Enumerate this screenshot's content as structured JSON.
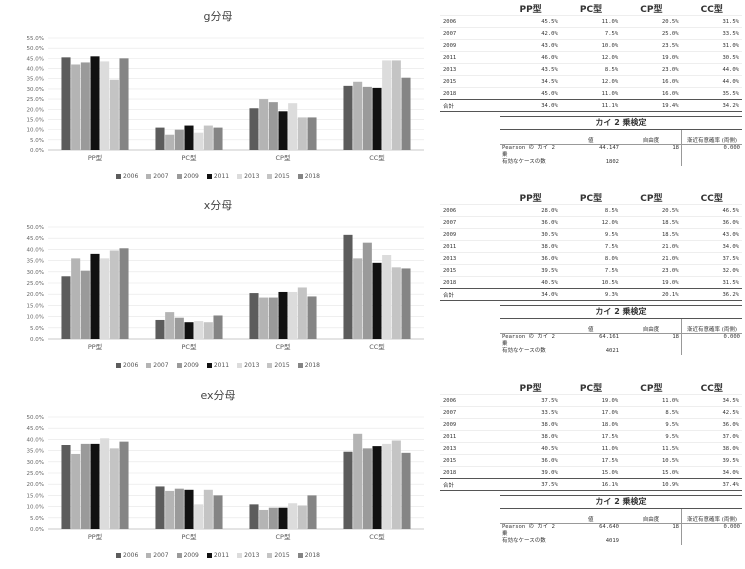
{
  "legend_years": [
    "2006",
    "2007",
    "2009",
    "2011",
    "2013",
    "2015",
    "2018"
  ],
  "series_colors": [
    "#5c5c5c",
    "#b4b4b4",
    "#9a9a9a",
    "#111111",
    "#dcdcdc",
    "#c4c4c4",
    "#858585"
  ],
  "chart_data": [
    {
      "type": "bar",
      "title": "g分母",
      "categories": [
        "PP型",
        "PC型",
        "CP型",
        "CC型"
      ],
      "ylim": [
        0,
        55
      ],
      "yticks": [
        "0.0%",
        "5.0%",
        "10.0%",
        "15.0%",
        "20.0%",
        "25.0%",
        "30.0%",
        "35.0%",
        "40.0%",
        "45.0%",
        "50.0%",
        "55.0%"
      ],
      "grid": true,
      "legend_position": "bottom",
      "series": [
        {
          "name": "2006",
          "values": [
            45.5,
            11.0,
            20.5,
            31.5
          ]
        },
        {
          "name": "2007",
          "values": [
            42.0,
            7.5,
            25.0,
            33.5
          ]
        },
        {
          "name": "2009",
          "values": [
            43.0,
            10.0,
            23.5,
            31.0
          ]
        },
        {
          "name": "2011",
          "values": [
            46.0,
            12.0,
            19.0,
            30.5
          ]
        },
        {
          "name": "2013",
          "values": [
            43.5,
            8.5,
            23.0,
            44.0
          ]
        },
        {
          "name": "2015",
          "values": [
            34.5,
            12.0,
            16.0,
            44.0
          ]
        },
        {
          "name": "2018",
          "values": [
            45.0,
            11.0,
            16.0,
            35.5
          ]
        }
      ]
    },
    {
      "type": "bar",
      "title": "x分母",
      "categories": [
        "PP型",
        "PC型",
        "CP型",
        "CC型"
      ],
      "ylim": [
        0,
        50
      ],
      "yticks": [
        "0.0%",
        "5.0%",
        "10.0%",
        "15.0%",
        "20.0%",
        "25.0%",
        "30.0%",
        "35.0%",
        "40.0%",
        "45.0%",
        "50.0%"
      ],
      "grid": true,
      "legend_position": "bottom",
      "series": [
        {
          "name": "2006",
          "values": [
            28.0,
            8.5,
            20.5,
            46.5
          ]
        },
        {
          "name": "2007",
          "values": [
            36.0,
            12.0,
            18.5,
            36.0
          ]
        },
        {
          "name": "2009",
          "values": [
            30.5,
            9.5,
            18.5,
            43.0
          ]
        },
        {
          "name": "2011",
          "values": [
            38.0,
            7.5,
            21.0,
            34.0
          ]
        },
        {
          "name": "2013",
          "values": [
            36.0,
            8.0,
            21.0,
            37.5
          ]
        },
        {
          "name": "2015",
          "values": [
            39.5,
            7.5,
            23.0,
            32.0
          ]
        },
        {
          "name": "2018",
          "values": [
            40.5,
            10.5,
            19.0,
            31.5
          ]
        }
      ]
    },
    {
      "type": "bar",
      "title": "ex分母",
      "categories": [
        "PP型",
        "PC型",
        "CP型",
        "CC型"
      ],
      "ylim": [
        0,
        50
      ],
      "yticks": [
        "0.0%",
        "5.0%",
        "10.0%",
        "15.0%",
        "20.0%",
        "25.0%",
        "30.0%",
        "35.0%",
        "40.0%",
        "45.0%",
        "50.0%"
      ],
      "grid": true,
      "legend_position": "bottom",
      "series": [
        {
          "name": "2006",
          "values": [
            37.5,
            19.0,
            11.0,
            34.5
          ]
        },
        {
          "name": "2007",
          "values": [
            33.5,
            17.0,
            8.5,
            42.5
          ]
        },
        {
          "name": "2009",
          "values": [
            38.0,
            18.0,
            9.5,
            36.0
          ]
        },
        {
          "name": "2011",
          "values": [
            38.0,
            17.5,
            9.5,
            37.0
          ]
        },
        {
          "name": "2013",
          "values": [
            40.5,
            11.0,
            11.5,
            38.0
          ]
        },
        {
          "name": "2015",
          "values": [
            36.0,
            17.5,
            10.5,
            39.5
          ]
        },
        {
          "name": "2018",
          "values": [
            39.0,
            15.0,
            15.0,
            34.0
          ]
        }
      ]
    }
  ],
  "tables": [
    {
      "headers": [
        "",
        "PP型",
        "PC型",
        "CP型",
        "CC型"
      ],
      "rows": [
        [
          "2006",
          "45.5%",
          "11.0%",
          "20.5%",
          "31.5%"
        ],
        [
          "2007",
          "42.0%",
          "7.5%",
          "25.0%",
          "33.5%"
        ],
        [
          "2009",
          "43.0%",
          "10.0%",
          "23.5%",
          "31.0%"
        ],
        [
          "2011",
          "46.0%",
          "12.0%",
          "19.0%",
          "30.5%"
        ],
        [
          "2013",
          "43.5%",
          "8.5%",
          "23.0%",
          "44.0%"
        ],
        [
          "2015",
          "34.5%",
          "12.0%",
          "16.0%",
          "44.0%"
        ],
        [
          "2018",
          "45.0%",
          "11.0%",
          "16.0%",
          "35.5%"
        ]
      ],
      "total": [
        "合計",
        "34.0%",
        "11.1%",
        "19.4%",
        "34.2%"
      ],
      "chi": {
        "title": "カイ 2 乗検定",
        "col_value": "値",
        "col_df": "自由度",
        "col_sig": "漸近有意確率 (両側)",
        "row1_label": "Pearson の カイ 2 乗",
        "row1_value": "44.147",
        "row1_df": "18",
        "row1_sig": "0.000",
        "row2_label": "有効なケースの数",
        "row2_value": "1802"
      }
    },
    {
      "headers": [
        "",
        "PP型",
        "PC型",
        "CP型",
        "CC型"
      ],
      "rows": [
        [
          "2006",
          "28.0%",
          "8.5%",
          "20.5%",
          "46.5%"
        ],
        [
          "2007",
          "36.0%",
          "12.0%",
          "18.5%",
          "36.0%"
        ],
        [
          "2009",
          "30.5%",
          "9.5%",
          "18.5%",
          "43.0%"
        ],
        [
          "2011",
          "38.0%",
          "7.5%",
          "21.0%",
          "34.0%"
        ],
        [
          "2013",
          "36.0%",
          "8.0%",
          "21.0%",
          "37.5%"
        ],
        [
          "2015",
          "39.5%",
          "7.5%",
          "23.0%",
          "32.0%"
        ],
        [
          "2018",
          "40.5%",
          "10.5%",
          "19.0%",
          "31.5%"
        ]
      ],
      "total": [
        "合計",
        "34.0%",
        "9.3%",
        "20.1%",
        "36.2%"
      ],
      "chi": {
        "title": "カイ 2 乗検定",
        "col_value": "値",
        "col_df": "自由度",
        "col_sig": "漸近有意確率 (両側)",
        "row1_label": "Pearson の カイ 2 乗",
        "row1_value": "64.161",
        "row1_df": "18",
        "row1_sig": "0.000",
        "row2_label": "有効なケースの数",
        "row2_value": "4021"
      }
    },
    {
      "headers": [
        "",
        "PP型",
        "PC型",
        "CP型",
        "CC型"
      ],
      "rows": [
        [
          "2006",
          "37.5%",
          "19.0%",
          "11.0%",
          "34.5%"
        ],
        [
          "2007",
          "33.5%",
          "17.0%",
          "8.5%",
          "42.5%"
        ],
        [
          "2009",
          "38.0%",
          "18.0%",
          "9.5%",
          "36.0%"
        ],
        [
          "2011",
          "38.0%",
          "17.5%",
          "9.5%",
          "37.0%"
        ],
        [
          "2013",
          "40.5%",
          "11.0%",
          "11.5%",
          "38.0%"
        ],
        [
          "2015",
          "36.0%",
          "17.5%",
          "10.5%",
          "39.5%"
        ],
        [
          "2018",
          "39.0%",
          "15.0%",
          "15.0%",
          "34.0%"
        ]
      ],
      "total": [
        "合計",
        "37.5%",
        "16.1%",
        "10.9%",
        "37.4%"
      ],
      "chi": {
        "title": "カイ 2 乗検定",
        "col_value": "値",
        "col_df": "自由度",
        "col_sig": "漸近有意確率 (両側)",
        "row1_label": "Pearson の カイ 2 乗",
        "row1_value": "64.640",
        "row1_df": "18",
        "row1_sig": "0.000",
        "row2_label": "有効なケースの数",
        "row2_value": "4019"
      }
    }
  ]
}
